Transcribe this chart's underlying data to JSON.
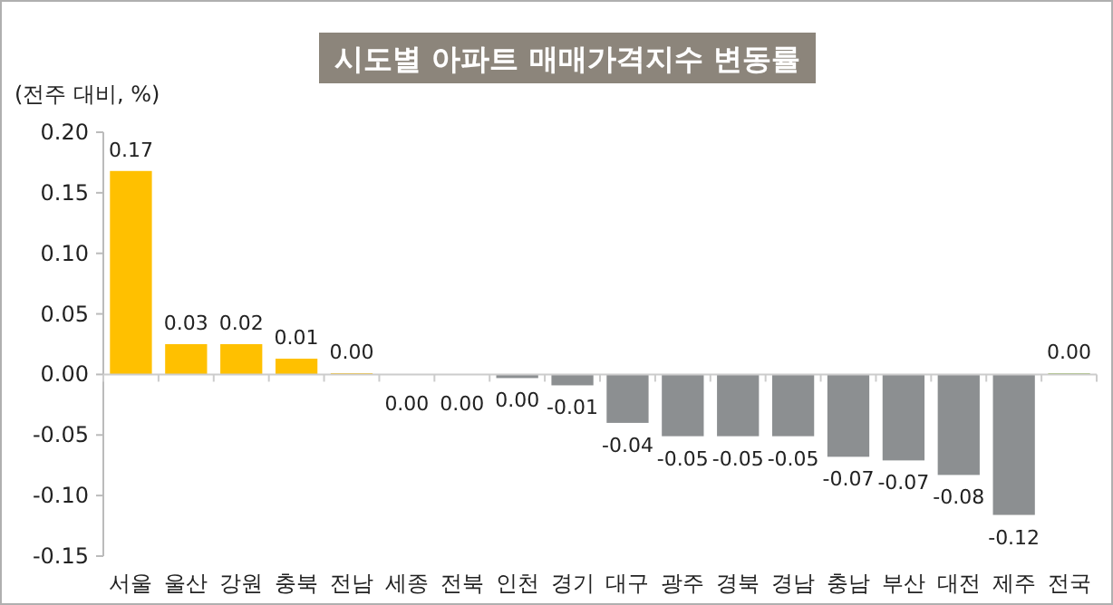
{
  "chart_data": {
    "type": "bar",
    "title": "시도별 아파트 매매가격지수 변동률",
    "ylabel": "(전주 대비, %)",
    "categories": [
      "서울",
      "울산",
      "강원",
      "충북",
      "전남",
      "세종",
      "전북",
      "인천",
      "경기",
      "대구",
      "광주",
      "경북",
      "경남",
      "충남",
      "부산",
      "대전",
      "제주",
      "전국"
    ],
    "values": [
      0.168,
      0.025,
      0.025,
      0.013,
      0.001,
      0,
      0,
      -0.003,
      -0.009,
      -0.04,
      -0.051,
      -0.051,
      -0.051,
      -0.068,
      -0.071,
      -0.083,
      -0.116,
      0.001
    ],
    "value_labels": [
      "0.17",
      "0.03",
      "0.02",
      "0.01",
      "0.00",
      "0.00",
      "0.00",
      "0.00",
      "-0.01",
      "-0.04",
      "-0.05",
      "-0.05",
      "-0.05",
      "-0.07",
      "-0.07",
      "-0.08",
      "-0.12",
      "0.00"
    ],
    "colors": [
      "#ffc000",
      "#ffc000",
      "#ffc000",
      "#ffc000",
      "#ffc000",
      "#8c8f91",
      "#8c8f91",
      "#8c8f91",
      "#8c8f91",
      "#8c8f91",
      "#8c8f91",
      "#8c8f91",
      "#8c8f91",
      "#8c8f91",
      "#8c8f91",
      "#8c8f91",
      "#8c8f91",
      "#9bbb59"
    ],
    "ylim": [
      -0.15,
      0.2
    ],
    "yticks": [
      {
        "value": -0.15,
        "label": "-0.15"
      },
      {
        "value": -0.1,
        "label": "-0.10"
      },
      {
        "value": -0.05,
        "label": "-0.05"
      },
      {
        "value": 0,
        "label": "0.00"
      },
      {
        "value": 0.05,
        "label": "0.05"
      },
      {
        "value": 0.1,
        "label": "0.10"
      },
      {
        "value": 0.15,
        "label": "0.15"
      },
      {
        "value": 0.2,
        "label": "0.20"
      }
    ]
  }
}
